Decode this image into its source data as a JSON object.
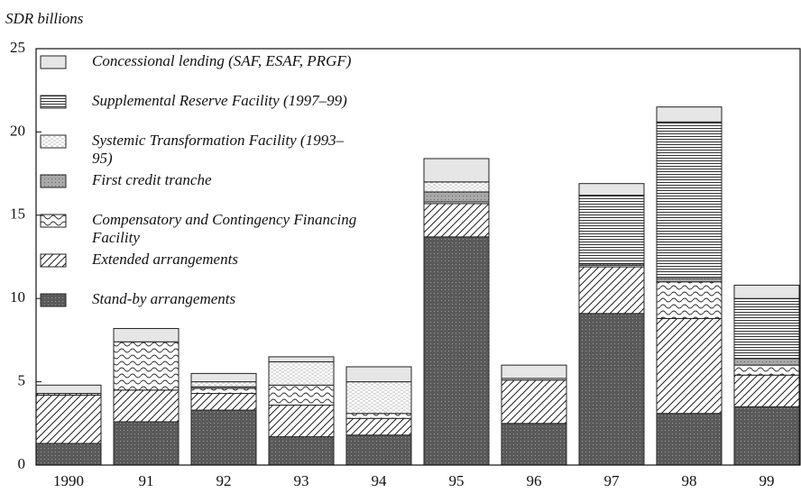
{
  "chart_data": {
    "type": "bar",
    "stacked": true,
    "subtitle": "SDR billions",
    "categories": [
      "1990",
      "91",
      "92",
      "93",
      "94",
      "95",
      "96",
      "97",
      "98",
      "99"
    ],
    "series": [
      {
        "name": "Stand-by arrangements",
        "color": "#5a5a5a",
        "values": [
          1.3,
          2.6,
          3.3,
          1.7,
          1.8,
          13.7,
          2.5,
          9.1,
          3.1,
          3.5
        ]
      },
      {
        "name": "Extended arrangements",
        "color": "#ffffff",
        "values": [
          2.9,
          1.9,
          1.0,
          1.9,
          1.0,
          2.0,
          2.6,
          2.8,
          5.7,
          1.9
        ]
      },
      {
        "name": "Compensatory and Contingency Financing Facility",
        "color": "#ffffff",
        "values": [
          0.1,
          2.9,
          0.3,
          1.2,
          0.3,
          0.1,
          0.1,
          0.1,
          2.2,
          0.6
        ]
      },
      {
        "name": "First credit tranche",
        "color": "#a8a8a8",
        "values": [
          0,
          0,
          0.1,
          0,
          0,
          0.6,
          0,
          0.1,
          0.2,
          0.4
        ]
      },
      {
        "name": "Systemic Transformation Facility (1993–95)",
        "color": "#ffffff",
        "values": [
          0,
          0,
          0.3,
          1.4,
          1.9,
          0.6,
          0,
          0,
          0,
          0
        ]
      },
      {
        "name": "Supplemental Reserve Facility (1997–99)",
        "color": "#ffffff",
        "values": [
          0,
          0,
          0,
          0,
          0,
          0,
          0,
          4.1,
          9.4,
          3.6
        ]
      },
      {
        "name": "Concessional lending (SAF, ESAF, PRGF)",
        "color": "#e6e6e6",
        "values": [
          0.5,
          0.8,
          0.5,
          0.3,
          0.9,
          1.4,
          0.8,
          0.7,
          0.9,
          0.8
        ]
      }
    ],
    "ylim": [
      0,
      25
    ],
    "yticks": [
      0,
      5,
      10,
      15,
      20,
      25
    ],
    "legend": "upper left"
  }
}
